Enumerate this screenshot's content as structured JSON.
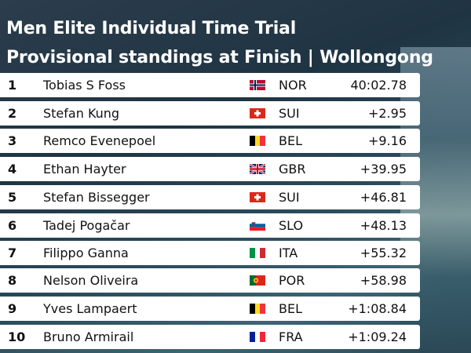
{
  "header": {
    "title": "Men Elite Individual Time Trial",
    "subtitle": "Provisional standings at Finish | Wollongong"
  },
  "table": {
    "rows": [
      [
        "1",
        "Tobias S Foss",
        "NOR",
        "40:02.78"
      ],
      [
        "2",
        "Stefan Kung",
        "SUI",
        "+2.95"
      ],
      [
        "3",
        "Remco Evenepoel",
        "BEL",
        "+9.16"
      ],
      [
        "4",
        "Ethan Hayter",
        "GBR",
        "+39.95"
      ],
      [
        "5",
        "Stefan Bissegger",
        "SUI",
        "+46.81"
      ],
      [
        "6",
        "Tadej Pogačar",
        "SLO",
        "+48.13"
      ],
      [
        "7",
        "Filippo Ganna",
        "ITA",
        "+55.32"
      ],
      [
        "8",
        "Nelson Oliveira",
        "POR",
        "+58.98"
      ],
      [
        "9",
        "Yves Lampaert",
        "BEL",
        "+1:08.84"
      ],
      [
        "10",
        "Bruno Armirail",
        "FRA",
        "+1:09.24"
      ]
    ]
  }
}
